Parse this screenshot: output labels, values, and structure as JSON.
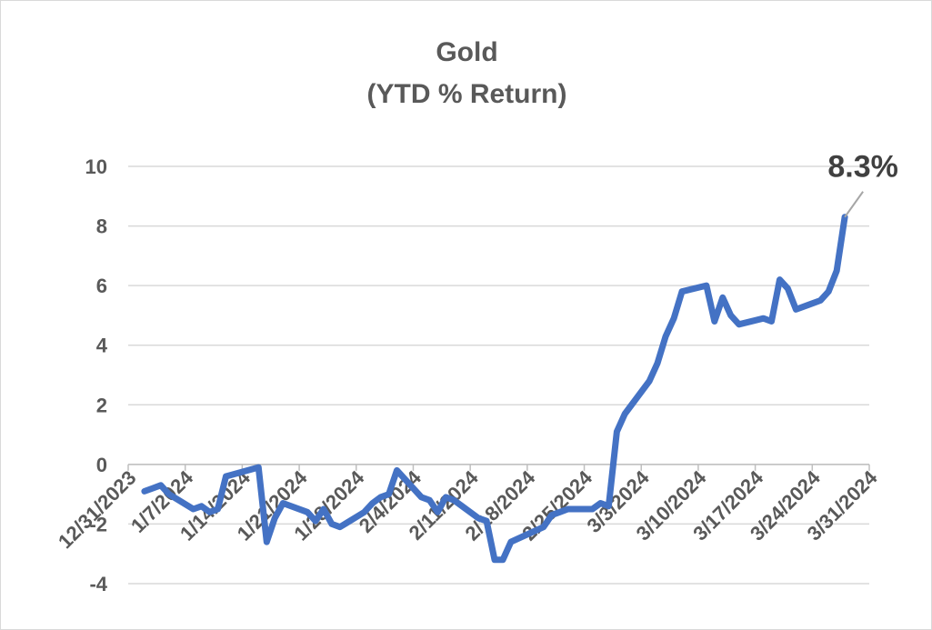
{
  "chart_data": {
    "type": "line",
    "title": "Gold",
    "subtitle": "(YTD % Return)",
    "xlabel": "",
    "ylabel": "",
    "ylim": [
      -4,
      10
    ],
    "yticks": [
      10,
      8,
      6,
      4,
      2,
      0,
      -2,
      -4
    ],
    "xlim": [
      "2023-12-31",
      "2024-03-31"
    ],
    "xticks": [
      "12/31/2023",
      "1/7/2024",
      "1/14/2024",
      "1/21/2024",
      "1/28/2024",
      "2/4/2024",
      "2/11/2024",
      "2/18/2024",
      "2/25/2024",
      "3/3/2024",
      "3/10/2024",
      "3/17/2024",
      "3/24/2024",
      "3/31/2024"
    ],
    "grid": "horizontal",
    "annotation": "8.3%",
    "series": [
      {
        "color": "#4472c4",
        "x": [
          "2024-01-02",
          "2024-01-03",
          "2024-01-04",
          "2024-01-05",
          "2024-01-08",
          "2024-01-09",
          "2024-01-10",
          "2024-01-11",
          "2024-01-12",
          "2024-01-16",
          "2024-01-17",
          "2024-01-18",
          "2024-01-19",
          "2024-01-22",
          "2024-01-23",
          "2024-01-24",
          "2024-01-25",
          "2024-01-26",
          "2024-01-29",
          "2024-01-30",
          "2024-01-31",
          "2024-02-01",
          "2024-02-02",
          "2024-02-05",
          "2024-02-06",
          "2024-02-07",
          "2024-02-08",
          "2024-02-09",
          "2024-02-12",
          "2024-02-13",
          "2024-02-14",
          "2024-02-15",
          "2024-02-16",
          "2024-02-20",
          "2024-02-21",
          "2024-02-22",
          "2024-02-23",
          "2024-02-26",
          "2024-02-27",
          "2024-02-28",
          "2024-02-29",
          "2024-03-01",
          "2024-03-04",
          "2024-03-05",
          "2024-03-06",
          "2024-03-07",
          "2024-03-08",
          "2024-03-11",
          "2024-03-12",
          "2024-03-13",
          "2024-03-14",
          "2024-03-15",
          "2024-03-18",
          "2024-03-19",
          "2024-03-20",
          "2024-03-21",
          "2024-03-22",
          "2024-03-25",
          "2024-03-26",
          "2024-03-27",
          "2024-03-28"
        ],
        "values": [
          -0.9,
          -0.8,
          -0.7,
          -1.0,
          -1.5,
          -1.4,
          -1.6,
          -1.5,
          -0.4,
          -0.1,
          -2.6,
          -1.8,
          -1.3,
          -1.6,
          -1.9,
          -1.5,
          -2.0,
          -2.1,
          -1.6,
          -1.3,
          -1.1,
          -1.0,
          -0.2,
          -1.1,
          -1.2,
          -1.6,
          -1.1,
          -1.2,
          -1.8,
          -1.9,
          -3.2,
          -3.2,
          -2.6,
          -2.1,
          -1.7,
          -1.6,
          -1.5,
          -1.5,
          -1.3,
          -1.4,
          1.1,
          1.7,
          2.8,
          3.4,
          4.3,
          4.9,
          5.8,
          6.0,
          4.8,
          5.6,
          5.0,
          4.7,
          4.9,
          4.8,
          6.2,
          5.9,
          5.2,
          5.5,
          5.8,
          6.5,
          8.3
        ]
      }
    ]
  }
}
